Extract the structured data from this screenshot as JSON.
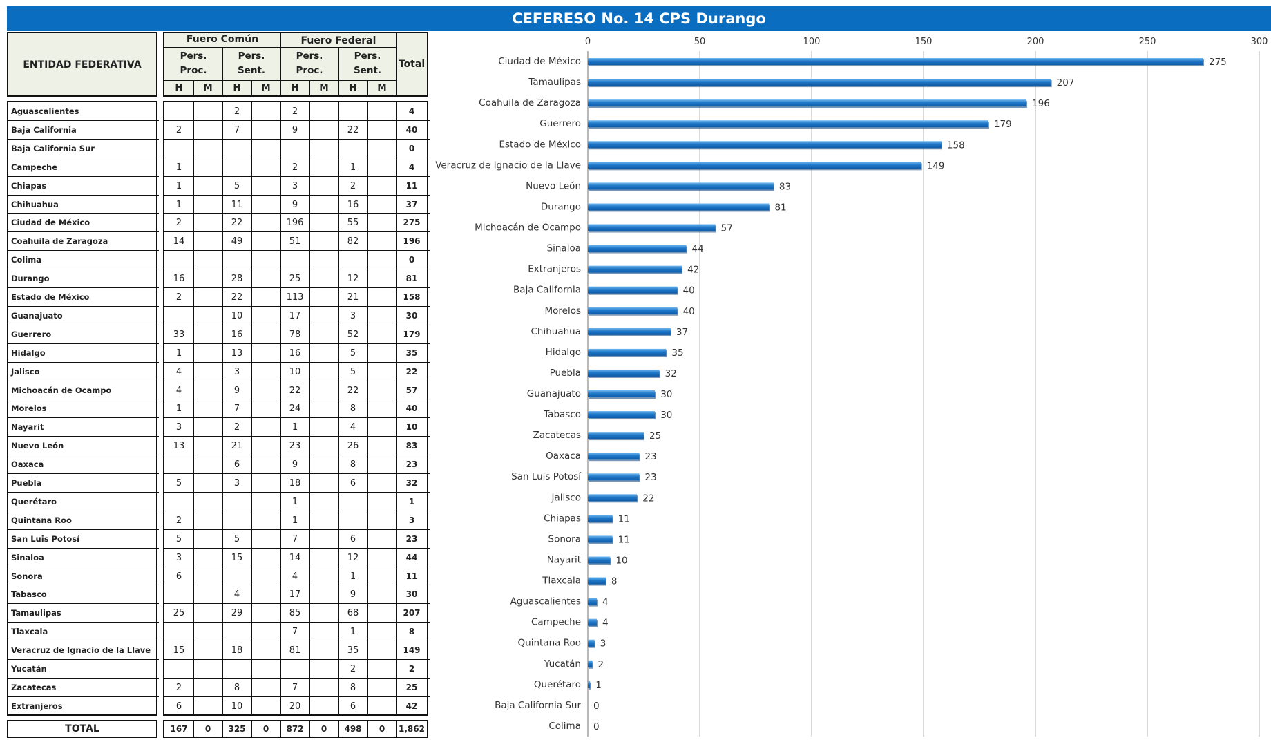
{
  "title": "CEFERESO No. 14 CPS Durango",
  "table": {
    "header": {
      "entity": "ENTIDAD FEDERATIVA",
      "fuero_comun": "Fuero Común",
      "fuero_federal": "Fuero Federal",
      "pers": "Pers.",
      "proc": "Proc.",
      "sent": "Sent.",
      "h": "H",
      "m": "M",
      "total": "Total"
    },
    "rows": [
      {
        "name": "Aguascalientes",
        "fc_proc_h": "",
        "fc_proc_m": "",
        "fc_sent_h": "2",
        "fc_sent_m": "",
        "ff_proc_h": "2",
        "ff_proc_m": "",
        "ff_sent_h": "",
        "ff_sent_m": "",
        "total": "4"
      },
      {
        "name": "Baja California",
        "fc_proc_h": "2",
        "fc_proc_m": "",
        "fc_sent_h": "7",
        "fc_sent_m": "",
        "ff_proc_h": "9",
        "ff_proc_m": "",
        "ff_sent_h": "22",
        "ff_sent_m": "",
        "total": "40"
      },
      {
        "name": "Baja California Sur",
        "fc_proc_h": "",
        "fc_proc_m": "",
        "fc_sent_h": "",
        "fc_sent_m": "",
        "ff_proc_h": "",
        "ff_proc_m": "",
        "ff_sent_h": "",
        "ff_sent_m": "",
        "total": "0"
      },
      {
        "name": "Campeche",
        "fc_proc_h": "1",
        "fc_proc_m": "",
        "fc_sent_h": "",
        "fc_sent_m": "",
        "ff_proc_h": "2",
        "ff_proc_m": "",
        "ff_sent_h": "1",
        "ff_sent_m": "",
        "total": "4"
      },
      {
        "name": "Chiapas",
        "fc_proc_h": "1",
        "fc_proc_m": "",
        "fc_sent_h": "5",
        "fc_sent_m": "",
        "ff_proc_h": "3",
        "ff_proc_m": "",
        "ff_sent_h": "2",
        "ff_sent_m": "",
        "total": "11"
      },
      {
        "name": "Chihuahua",
        "fc_proc_h": "1",
        "fc_proc_m": "",
        "fc_sent_h": "11",
        "fc_sent_m": "",
        "ff_proc_h": "9",
        "ff_proc_m": "",
        "ff_sent_h": "16",
        "ff_sent_m": "",
        "total": "37"
      },
      {
        "name": "Ciudad de México",
        "fc_proc_h": "2",
        "fc_proc_m": "",
        "fc_sent_h": "22",
        "fc_sent_m": "",
        "ff_proc_h": "196",
        "ff_proc_m": "",
        "ff_sent_h": "55",
        "ff_sent_m": "",
        "total": "275"
      },
      {
        "name": "Coahuila de Zaragoza",
        "fc_proc_h": "14",
        "fc_proc_m": "",
        "fc_sent_h": "49",
        "fc_sent_m": "",
        "ff_proc_h": "51",
        "ff_proc_m": "",
        "ff_sent_h": "82",
        "ff_sent_m": "",
        "total": "196"
      },
      {
        "name": "Colima",
        "fc_proc_h": "",
        "fc_proc_m": "",
        "fc_sent_h": "",
        "fc_sent_m": "",
        "ff_proc_h": "",
        "ff_proc_m": "",
        "ff_sent_h": "",
        "ff_sent_m": "",
        "total": "0"
      },
      {
        "name": "Durango",
        "fc_proc_h": "16",
        "fc_proc_m": "",
        "fc_sent_h": "28",
        "fc_sent_m": "",
        "ff_proc_h": "25",
        "ff_proc_m": "",
        "ff_sent_h": "12",
        "ff_sent_m": "",
        "total": "81"
      },
      {
        "name": "Estado de México",
        "fc_proc_h": "2",
        "fc_proc_m": "",
        "fc_sent_h": "22",
        "fc_sent_m": "",
        "ff_proc_h": "113",
        "ff_proc_m": "",
        "ff_sent_h": "21",
        "ff_sent_m": "",
        "total": "158"
      },
      {
        "name": "Guanajuato",
        "fc_proc_h": "",
        "fc_proc_m": "",
        "fc_sent_h": "10",
        "fc_sent_m": "",
        "ff_proc_h": "17",
        "ff_proc_m": "",
        "ff_sent_h": "3",
        "ff_sent_m": "",
        "total": "30"
      },
      {
        "name": "Guerrero",
        "fc_proc_h": "33",
        "fc_proc_m": "",
        "fc_sent_h": "16",
        "fc_sent_m": "",
        "ff_proc_h": "78",
        "ff_proc_m": "",
        "ff_sent_h": "52",
        "ff_sent_m": "",
        "total": "179"
      },
      {
        "name": "Hidalgo",
        "fc_proc_h": "1",
        "fc_proc_m": "",
        "fc_sent_h": "13",
        "fc_sent_m": "",
        "ff_proc_h": "16",
        "ff_proc_m": "",
        "ff_sent_h": "5",
        "ff_sent_m": "",
        "total": "35"
      },
      {
        "name": "Jalisco",
        "fc_proc_h": "4",
        "fc_proc_m": "",
        "fc_sent_h": "3",
        "fc_sent_m": "",
        "ff_proc_h": "10",
        "ff_proc_m": "",
        "ff_sent_h": "5",
        "ff_sent_m": "",
        "total": "22"
      },
      {
        "name": "Michoacán de Ocampo",
        "fc_proc_h": "4",
        "fc_proc_m": "",
        "fc_sent_h": "9",
        "fc_sent_m": "",
        "ff_proc_h": "22",
        "ff_proc_m": "",
        "ff_sent_h": "22",
        "ff_sent_m": "",
        "total": "57"
      },
      {
        "name": "Morelos",
        "fc_proc_h": "1",
        "fc_proc_m": "",
        "fc_sent_h": "7",
        "fc_sent_m": "",
        "ff_proc_h": "24",
        "ff_proc_m": "",
        "ff_sent_h": "8",
        "ff_sent_m": "",
        "total": "40"
      },
      {
        "name": "Nayarit",
        "fc_proc_h": "3",
        "fc_proc_m": "",
        "fc_sent_h": "2",
        "fc_sent_m": "",
        "ff_proc_h": "1",
        "ff_proc_m": "",
        "ff_sent_h": "4",
        "ff_sent_m": "",
        "total": "10"
      },
      {
        "name": "Nuevo León",
        "fc_proc_h": "13",
        "fc_proc_m": "",
        "fc_sent_h": "21",
        "fc_sent_m": "",
        "ff_proc_h": "23",
        "ff_proc_m": "",
        "ff_sent_h": "26",
        "ff_sent_m": "",
        "total": "83"
      },
      {
        "name": "Oaxaca",
        "fc_proc_h": "",
        "fc_proc_m": "",
        "fc_sent_h": "6",
        "fc_sent_m": "",
        "ff_proc_h": "9",
        "ff_proc_m": "",
        "ff_sent_h": "8",
        "ff_sent_m": "",
        "total": "23"
      },
      {
        "name": "Puebla",
        "fc_proc_h": "5",
        "fc_proc_m": "",
        "fc_sent_h": "3",
        "fc_sent_m": "",
        "ff_proc_h": "18",
        "ff_proc_m": "",
        "ff_sent_h": "6",
        "ff_sent_m": "",
        "total": "32"
      },
      {
        "name": "Querétaro",
        "fc_proc_h": "",
        "fc_proc_m": "",
        "fc_sent_h": "",
        "fc_sent_m": "",
        "ff_proc_h": "1",
        "ff_proc_m": "",
        "ff_sent_h": "",
        "ff_sent_m": "",
        "total": "1"
      },
      {
        "name": "Quintana Roo",
        "fc_proc_h": "2",
        "fc_proc_m": "",
        "fc_sent_h": "",
        "fc_sent_m": "",
        "ff_proc_h": "1",
        "ff_proc_m": "",
        "ff_sent_h": "",
        "ff_sent_m": "",
        "total": "3"
      },
      {
        "name": "San Luis Potosí",
        "fc_proc_h": "5",
        "fc_proc_m": "",
        "fc_sent_h": "5",
        "fc_sent_m": "",
        "ff_proc_h": "7",
        "ff_proc_m": "",
        "ff_sent_h": "6",
        "ff_sent_m": "",
        "total": "23"
      },
      {
        "name": "Sinaloa",
        "fc_proc_h": "3",
        "fc_proc_m": "",
        "fc_sent_h": "15",
        "fc_sent_m": "",
        "ff_proc_h": "14",
        "ff_proc_m": "",
        "ff_sent_h": "12",
        "ff_sent_m": "",
        "total": "44"
      },
      {
        "name": "Sonora",
        "fc_proc_h": "6",
        "fc_proc_m": "",
        "fc_sent_h": "",
        "fc_sent_m": "",
        "ff_proc_h": "4",
        "ff_proc_m": "",
        "ff_sent_h": "1",
        "ff_sent_m": "",
        "total": "11"
      },
      {
        "name": "Tabasco",
        "fc_proc_h": "",
        "fc_proc_m": "",
        "fc_sent_h": "4",
        "fc_sent_m": "",
        "ff_proc_h": "17",
        "ff_proc_m": "",
        "ff_sent_h": "9",
        "ff_sent_m": "",
        "total": "30"
      },
      {
        "name": "Tamaulipas",
        "fc_proc_h": "25",
        "fc_proc_m": "",
        "fc_sent_h": "29",
        "fc_sent_m": "",
        "ff_proc_h": "85",
        "ff_proc_m": "",
        "ff_sent_h": "68",
        "ff_sent_m": "",
        "total": "207"
      },
      {
        "name": "Tlaxcala",
        "fc_proc_h": "",
        "fc_proc_m": "",
        "fc_sent_h": "",
        "fc_sent_m": "",
        "ff_proc_h": "7",
        "ff_proc_m": "",
        "ff_sent_h": "1",
        "ff_sent_m": "",
        "total": "8"
      },
      {
        "name": "Veracruz de Ignacio de la Llave",
        "fc_proc_h": "15",
        "fc_proc_m": "",
        "fc_sent_h": "18",
        "fc_sent_m": "",
        "ff_proc_h": "81",
        "ff_proc_m": "",
        "ff_sent_h": "35",
        "ff_sent_m": "",
        "total": "149"
      },
      {
        "name": "Yucatán",
        "fc_proc_h": "",
        "fc_proc_m": "",
        "fc_sent_h": "",
        "fc_sent_m": "",
        "ff_proc_h": "",
        "ff_proc_m": "",
        "ff_sent_h": "2",
        "ff_sent_m": "",
        "total": "2"
      },
      {
        "name": "Zacatecas",
        "fc_proc_h": "2",
        "fc_proc_m": "",
        "fc_sent_h": "8",
        "fc_sent_m": "",
        "ff_proc_h": "7",
        "ff_proc_m": "",
        "ff_sent_h": "8",
        "ff_sent_m": "",
        "total": "25"
      },
      {
        "name": "Extranjeros",
        "fc_proc_h": "6",
        "fc_proc_m": "",
        "fc_sent_h": "10",
        "fc_sent_m": "",
        "ff_proc_h": "20",
        "ff_proc_m": "",
        "ff_sent_h": "6",
        "ff_sent_m": "",
        "total": "42"
      }
    ],
    "totals": {
      "label": "TOTAL",
      "fc_proc_h": "167",
      "fc_proc_m": "0",
      "fc_sent_h": "325",
      "fc_sent_m": "0",
      "ff_proc_h": "872",
      "ff_proc_m": "0",
      "ff_sent_h": "498",
      "ff_sent_m": "0",
      "total": "1,862"
    }
  },
  "chart_data": {
    "type": "bar",
    "orientation": "horizontal",
    "categories": [
      "Ciudad de México",
      "Tamaulipas",
      "Coahuila de Zaragoza",
      "Guerrero",
      "Estado de México",
      "Veracruz de Ignacio de la Llave",
      "Nuevo León",
      "Durango",
      "Michoacán de Ocampo",
      "Sinaloa",
      "Extranjeros",
      "Baja California",
      "Morelos",
      "Chihuahua",
      "Hidalgo",
      "Puebla",
      "Guanajuato",
      "Tabasco",
      "Zacatecas",
      "Oaxaca",
      "San Luis Potosí",
      "Jalisco",
      "Chiapas",
      "Sonora",
      "Nayarit",
      "Tlaxcala",
      "Aguascalientes",
      "Campeche",
      "Quintana Roo",
      "Yucatán",
      "Querétaro",
      "Baja California Sur",
      "Colima"
    ],
    "values": [
      275,
      207,
      196,
      179,
      158,
      149,
      83,
      81,
      57,
      44,
      42,
      40,
      40,
      37,
      35,
      32,
      30,
      30,
      25,
      23,
      23,
      22,
      11,
      11,
      10,
      8,
      4,
      4,
      3,
      2,
      1,
      0,
      0
    ],
    "xlim": [
      0,
      300
    ],
    "xticks": [
      0,
      50,
      100,
      150,
      200,
      250,
      300
    ],
    "grid": true,
    "axis_position": "top",
    "data_labels": true,
    "bar_color": "#1F78C8",
    "bar_shadow_color": "#0A3F7A"
  },
  "colors": {
    "title_bg": "#0B6DBF",
    "header_bg": "#EEF1E6",
    "grid": "#B5B5B5"
  }
}
